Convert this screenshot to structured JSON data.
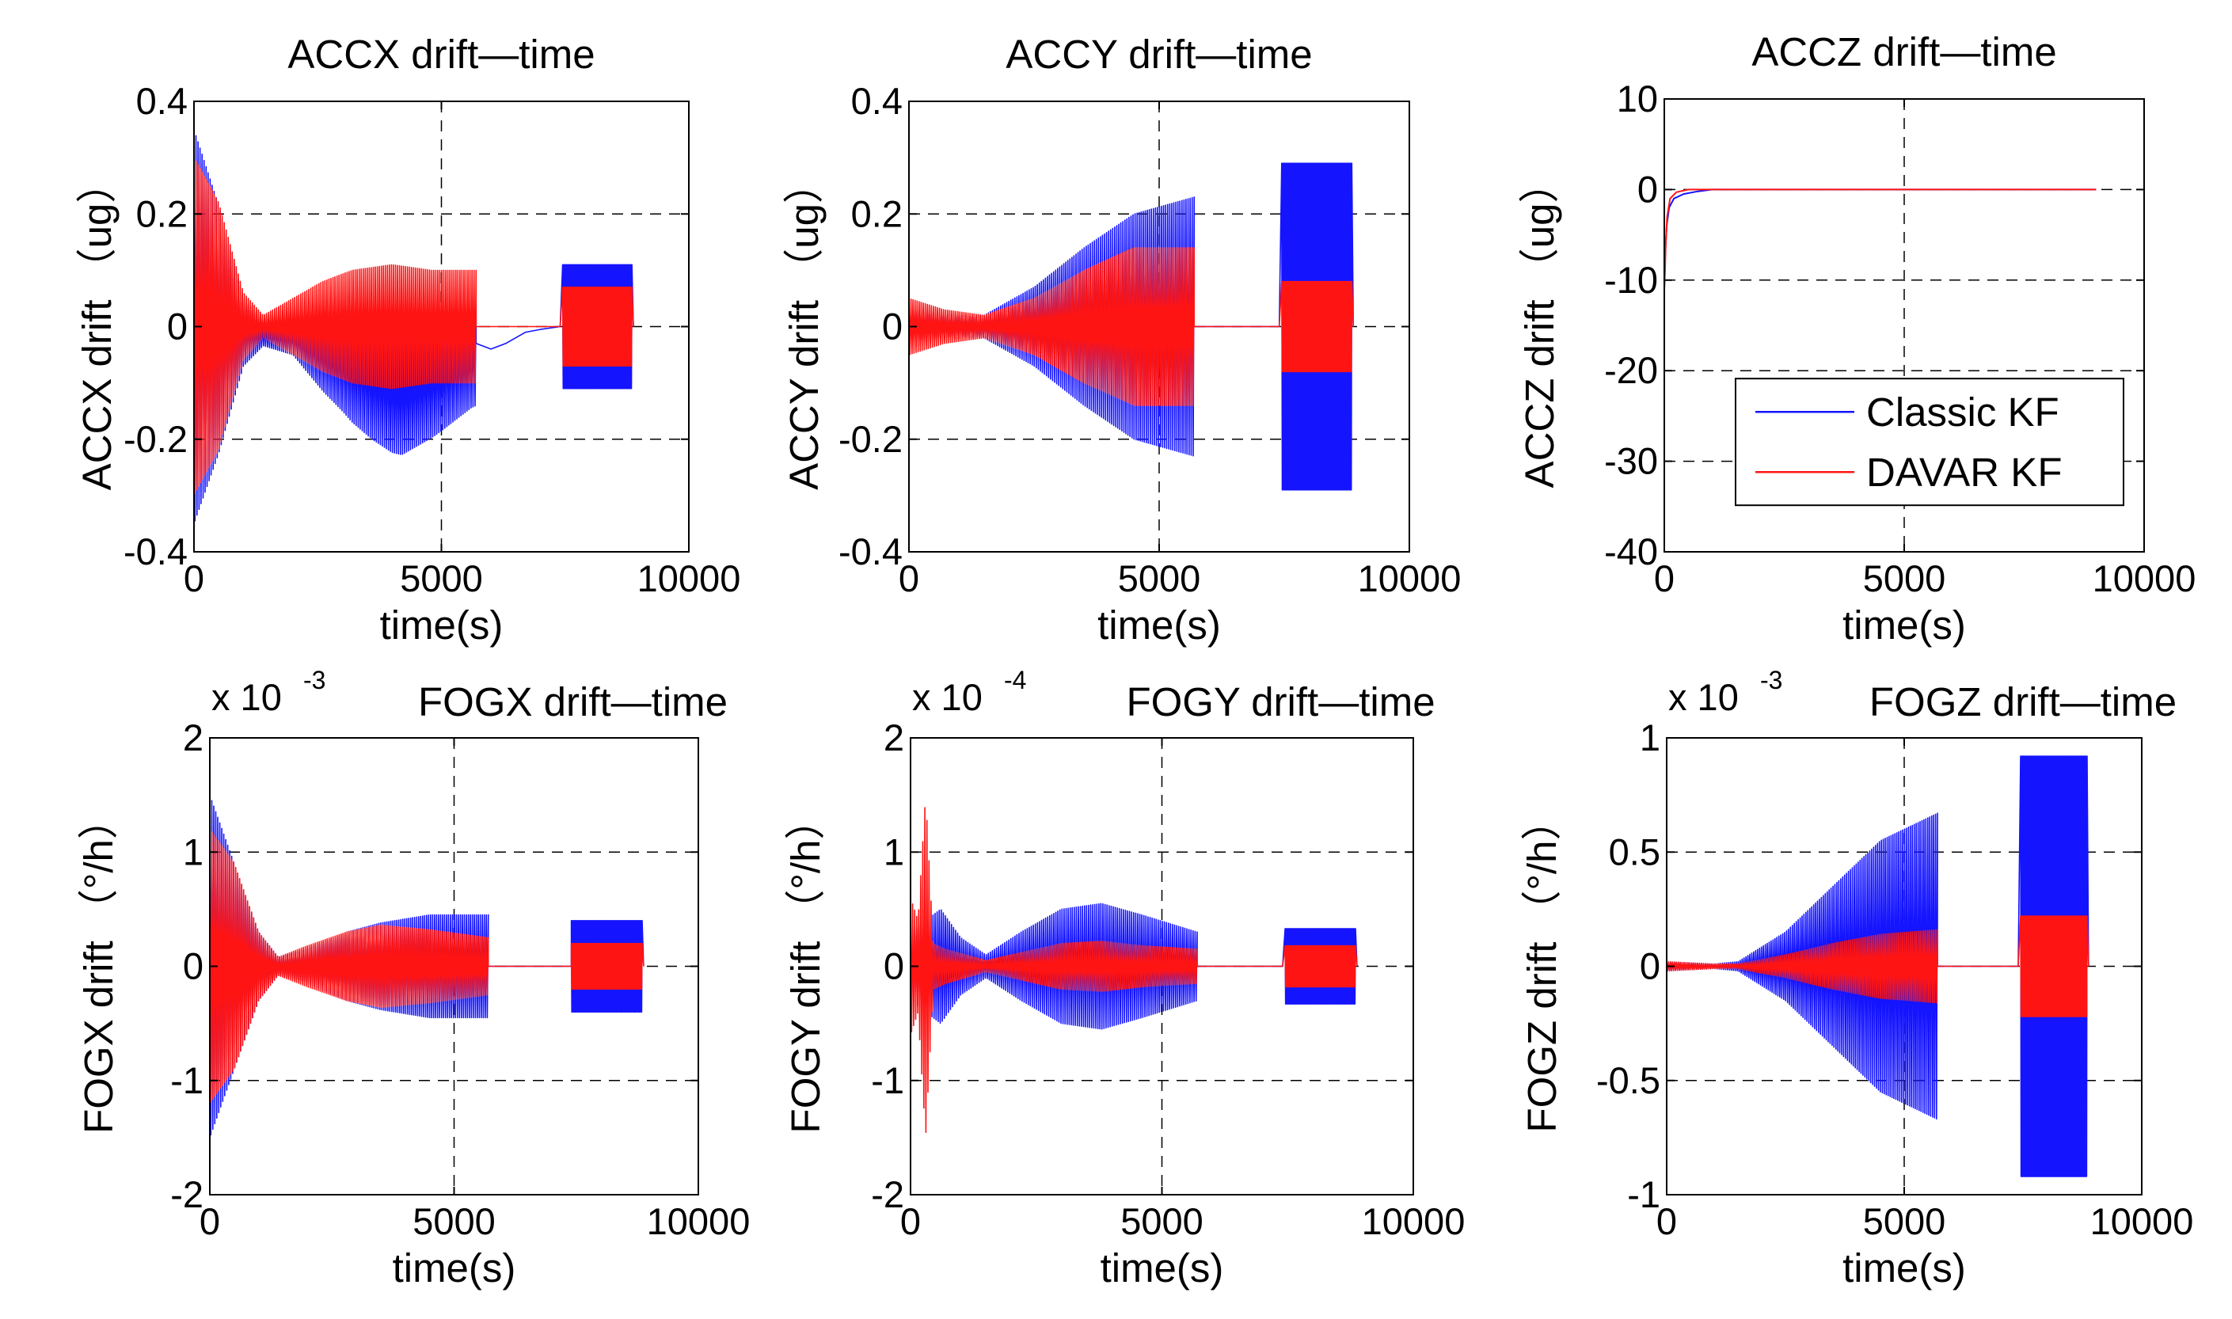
{
  "figure": {
    "series_names": [
      "Classic KF",
      "DAVAR KF"
    ],
    "series_colors": [
      "#1414ff",
      "#ff1414"
    ]
  },
  "chart_data": [
    {
      "type": "line",
      "title": "ACCX drift—time",
      "xlabel": "time(s)",
      "ylabel": "ACCX drift （ug）",
      "xlim": [
        0,
        10000
      ],
      "ylim": [
        -0.4,
        0.4
      ],
      "xticks": [
        0,
        5000,
        10000
      ],
      "yticks": [
        -0.4,
        -0.2,
        0,
        0.2,
        0.4
      ],
      "xtick_labels": [
        "0",
        "5000",
        "10000"
      ],
      "ytick_labels": [
        "-0.4",
        "-0.2",
        "0",
        "0.2",
        "0.4"
      ],
      "multiplier": null,
      "grid": true,
      "series": [
        {
          "name": "Classic KF",
          "color": "#1414ff",
          "envelope": [
            [
              0,
              0.35
            ],
            [
              500,
              0.22
            ],
            [
              1000,
              0.06
            ],
            [
              1400,
              0.02
            ],
            [
              2000,
              0.03
            ],
            [
              2600,
              0.07
            ],
            [
              3200,
              0.1
            ],
            [
              4000,
              0.12
            ],
            [
              4800,
              0.11
            ],
            [
              5600,
              0.09
            ]
          ],
          "offset": [
            [
              0,
              0
            ],
            [
              2000,
              -0.02
            ],
            [
              3000,
              -0.06
            ],
            [
              3600,
              -0.09
            ],
            [
              4200,
              -0.11
            ],
            [
              5000,
              -0.08
            ],
            [
              5700,
              -0.05
            ]
          ],
          "segments": [
            [
              0,
              5700
            ],
            [
              7450,
              8850
            ]
          ],
          "seg_envelope": [
            0.11
          ],
          "seg_offset": [
            0
          ],
          "trend": [
            [
              5700,
              -0.03
            ],
            [
              6000,
              -0.04
            ],
            [
              6300,
              -0.03
            ],
            [
              6700,
              -0.01
            ],
            [
              7000,
              -0.005
            ],
            [
              7400,
              0.0
            ]
          ],
          "cycles": 140
        },
        {
          "name": "DAVAR KF",
          "color": "#ff1414",
          "envelope": [
            [
              0,
              0.3
            ],
            [
              500,
              0.22
            ],
            [
              1000,
              0.06
            ],
            [
              1400,
              0.02
            ],
            [
              2000,
              0.05
            ],
            [
              2600,
              0.08
            ],
            [
              3200,
              0.1
            ],
            [
              4000,
              0.11
            ],
            [
              4800,
              0.1
            ],
            [
              5600,
              0.1
            ]
          ],
          "offset": [
            [
              0,
              0
            ],
            [
              2000,
              0.0
            ],
            [
              3000,
              0.0
            ],
            [
              5700,
              0.0
            ]
          ],
          "segments": [
            [
              0,
              5700
            ],
            [
              7450,
              8850
            ]
          ],
          "seg_envelope": [
            0.07
          ],
          "seg_offset": [
            0
          ],
          "trend": [
            [
              5700,
              0
            ],
            [
              7400,
              0
            ]
          ],
          "cycles": 140
        }
      ]
    },
    {
      "type": "line",
      "title": "ACCY drift—time",
      "xlabel": "time(s)",
      "ylabel": "ACCY drift （ug）",
      "xlim": [
        0,
        10000
      ],
      "ylim": [
        -0.4,
        0.4
      ],
      "xticks": [
        0,
        5000,
        10000
      ],
      "yticks": [
        -0.4,
        -0.2,
        0,
        0.2,
        0.4
      ],
      "xtick_labels": [
        "0",
        "5000",
        "10000"
      ],
      "ytick_labels": [
        "-0.4",
        "-0.2",
        "0",
        "0.2",
        "0.4"
      ],
      "multiplier": null,
      "grid": true,
      "series": [
        {
          "name": "Classic KF",
          "color": "#1414ff",
          "envelope": [
            [
              0,
              0.03
            ],
            [
              700,
              0.02
            ],
            [
              1500,
              0.02
            ],
            [
              2500,
              0.07
            ],
            [
              3500,
              0.14
            ],
            [
              4500,
              0.2
            ],
            [
              5700,
              0.23
            ]
          ],
          "offset": [
            [
              0,
              0
            ]
          ],
          "segments": [
            [
              0,
              5700
            ],
            [
              7450,
              8850
            ]
          ],
          "seg_envelope": [
            0.29
          ],
          "seg_offset": [
            0
          ],
          "trend": [
            [
              5700,
              0
            ],
            [
              7400,
              0
            ]
          ],
          "cycles": 140
        },
        {
          "name": "DAVAR KF",
          "color": "#ff1414",
          "envelope": [
            [
              0,
              0.05
            ],
            [
              700,
              0.03
            ],
            [
              1500,
              0.02
            ],
            [
              2500,
              0.05
            ],
            [
              3500,
              0.1
            ],
            [
              4500,
              0.14
            ],
            [
              5700,
              0.14
            ]
          ],
          "offset": [
            [
              0,
              0
            ]
          ],
          "segments": [
            [
              0,
              5700
            ],
            [
              7450,
              8850
            ]
          ],
          "seg_envelope": [
            0.08
          ],
          "seg_offset": [
            0
          ],
          "trend": [
            [
              5700,
              0
            ],
            [
              7400,
              0
            ]
          ],
          "cycles": 140
        }
      ]
    },
    {
      "type": "line",
      "title": "ACCZ drift—time",
      "xlabel": "time(s)",
      "ylabel": "ACCZ drift （ug）",
      "xlim": [
        0,
        10000
      ],
      "ylim": [
        -40,
        10
      ],
      "xticks": [
        0,
        5000,
        10000
      ],
      "yticks": [
        -40,
        -30,
        -20,
        -10,
        0,
        10
      ],
      "xtick_labels": [
        "0",
        "5000",
        "10000"
      ],
      "ytick_labels": [
        "-40",
        "-30",
        "-20",
        "-10",
        "0",
        "10"
      ],
      "multiplier": null,
      "grid": true,
      "legend": {
        "location": "center-right",
        "entries": [
          "Classic KF",
          "DAVAR KF"
        ]
      },
      "series": [
        {
          "name": "Classic KF",
          "color": "#1414ff",
          "curve": [
            [
              0,
              -11
            ],
            [
              20,
              -7
            ],
            [
              50,
              -4
            ],
            [
              100,
              -2
            ],
            [
              200,
              -1
            ],
            [
              400,
              -0.5
            ],
            [
              700,
              -0.2
            ],
            [
              1000,
              0
            ],
            [
              9000,
              0
            ]
          ]
        },
        {
          "name": "DAVAR KF",
          "color": "#ff1414",
          "curve": [
            [
              0,
              -11
            ],
            [
              15,
              -9
            ],
            [
              30,
              -6
            ],
            [
              60,
              -3
            ],
            [
              120,
              -1
            ],
            [
              250,
              -0.3
            ],
            [
              500,
              0
            ],
            [
              9000,
              0
            ]
          ]
        }
      ]
    },
    {
      "type": "line",
      "title": "FOGX drift—time",
      "xlabel": "time(s)",
      "ylabel": "FOGX drift （°/h）",
      "xlim": [
        0,
        10000
      ],
      "ylim": [
        -2,
        2
      ],
      "xticks": [
        0,
        5000,
        10000
      ],
      "yticks": [
        -2,
        -1,
        0,
        1,
        2
      ],
      "xtick_labels": [
        "0",
        "5000",
        "10000"
      ],
      "ytick_labels": [
        "-2",
        "-1",
        "0",
        "1",
        "2"
      ],
      "multiplier": {
        "base": "x 10",
        "exp": "-3"
      },
      "grid": true,
      "series": [
        {
          "name": "Classic KF",
          "color": "#1414ff",
          "envelope": [
            [
              0,
              1.5
            ],
            [
              500,
              0.9
            ],
            [
              1000,
              0.3
            ],
            [
              1400,
              0.08
            ],
            [
              2000,
              0.15
            ],
            [
              2800,
              0.3
            ],
            [
              3500,
              0.38
            ],
            [
              4500,
              0.45
            ],
            [
              5700,
              0.45
            ]
          ],
          "offset": [
            [
              0,
              0
            ]
          ],
          "segments": [
            [
              0,
              5700
            ],
            [
              7400,
              8850
            ]
          ],
          "seg_envelope": [
            0.4
          ],
          "seg_offset": [
            0
          ],
          "trend": [
            [
              5700,
              0
            ],
            [
              7400,
              0
            ]
          ],
          "cycles": 140
        },
        {
          "name": "DAVAR KF",
          "color": "#ff1414",
          "envelope": [
            [
              0,
              1.2
            ],
            [
              500,
              0.9
            ],
            [
              1000,
              0.3
            ],
            [
              1400,
              0.08
            ],
            [
              2000,
              0.18
            ],
            [
              2800,
              0.3
            ],
            [
              3500,
              0.36
            ],
            [
              4500,
              0.32
            ],
            [
              5700,
              0.25
            ]
          ],
          "offset": [
            [
              0,
              0
            ]
          ],
          "segments": [
            [
              0,
              5700
            ],
            [
              7400,
              8850
            ]
          ],
          "seg_envelope": [
            0.2
          ],
          "seg_offset": [
            0
          ],
          "trend": [
            [
              5700,
              0
            ],
            [
              7400,
              0
            ]
          ],
          "cycles": 140
        }
      ]
    },
    {
      "type": "line",
      "title": "FOGY drift—time",
      "xlabel": "time(s)",
      "ylabel": "FOGY drift （°/h）",
      "xlim": [
        0,
        10000
      ],
      "ylim": [
        -2,
        2
      ],
      "xticks": [
        0,
        5000,
        10000
      ],
      "yticks": [
        -2,
        -1,
        0,
        1,
        2
      ],
      "xtick_labels": [
        "0",
        "5000",
        "10000"
      ],
      "ytick_labels": [
        "-2",
        "-1",
        "0",
        "1",
        "2"
      ],
      "multiplier": {
        "base": "x 10",
        "exp": "-4"
      },
      "grid": true,
      "series": [
        {
          "name": "Classic KF",
          "color": "#1414ff",
          "envelope": [
            [
              0,
              0.3
            ],
            [
              600,
              0.5
            ],
            [
              1000,
              0.25
            ],
            [
              1500,
              0.1
            ],
            [
              2200,
              0.3
            ],
            [
              3000,
              0.5
            ],
            [
              3800,
              0.55
            ],
            [
              4600,
              0.45
            ],
            [
              5700,
              0.3
            ]
          ],
          "offset": [
            [
              0,
              0
            ]
          ],
          "segments": [
            [
              0,
              5700
            ],
            [
              7450,
              8850
            ]
          ],
          "seg_envelope": [
            0.33
          ],
          "seg_offset": [
            0
          ],
          "trend": [
            [
              5700,
              0
            ],
            [
              7400,
              0
            ]
          ],
          "cycles": 140
        },
        {
          "name": "DAVAR KF",
          "color": "#ff1414",
          "envelope": [
            [
              0,
              0.6
            ],
            [
              150,
              0.4
            ],
            [
              300,
              1.5
            ],
            [
              450,
              0.2
            ],
            [
              700,
              0.15
            ],
            [
              1500,
              0.05
            ],
            [
              2200,
              0.12
            ],
            [
              3000,
              0.2
            ],
            [
              3800,
              0.22
            ],
            [
              4600,
              0.18
            ],
            [
              5700,
              0.15
            ]
          ],
          "offset": [
            [
              0,
              0
            ]
          ],
          "segments": [
            [
              0,
              5700
            ],
            [
              7450,
              8850
            ]
          ],
          "seg_envelope": [
            0.18
          ],
          "seg_offset": [
            0
          ],
          "trend": [
            [
              5700,
              0
            ],
            [
              7400,
              0
            ]
          ],
          "cycles": 140
        }
      ]
    },
    {
      "type": "line",
      "title": "FOGZ drift—time",
      "xlabel": "time(s)",
      "ylabel": "FOGZ drift （°/h）",
      "xlim": [
        0,
        10000
      ],
      "ylim": [
        -1,
        1
      ],
      "xticks": [
        0,
        5000,
        10000
      ],
      "yticks": [
        -1,
        -0.5,
        0,
        0.5,
        1
      ],
      "xtick_labels": [
        "0",
        "5000",
        "10000"
      ],
      "ytick_labels": [
        "-1",
        "-0.5",
        "0",
        "0.5",
        "1"
      ],
      "multiplier": {
        "base": "x 10",
        "exp": "-3"
      },
      "grid": true,
      "series": [
        {
          "name": "Classic KF",
          "color": "#1414ff",
          "envelope": [
            [
              0,
              0.02
            ],
            [
              1000,
              0.01
            ],
            [
              1500,
              0.02
            ],
            [
              2500,
              0.15
            ],
            [
              3500,
              0.35
            ],
            [
              4500,
              0.55
            ],
            [
              5700,
              0.67
            ]
          ],
          "offset": [
            [
              0,
              0
            ]
          ],
          "segments": [
            [
              0,
              5700
            ],
            [
              7450,
              8850
            ]
          ],
          "seg_envelope": [
            0.92
          ],
          "seg_offset": [
            0
          ],
          "trend": [
            [
              5700,
              0
            ],
            [
              7400,
              0
            ]
          ],
          "cycles": 140
        },
        {
          "name": "DAVAR KF",
          "color": "#ff1414",
          "envelope": [
            [
              0,
              0.02
            ],
            [
              1000,
              0.01
            ],
            [
              1500,
              0.01
            ],
            [
              2500,
              0.05
            ],
            [
              3500,
              0.1
            ],
            [
              4500,
              0.14
            ],
            [
              5700,
              0.16
            ]
          ],
          "offset": [
            [
              0,
              0
            ]
          ],
          "segments": [
            [
              0,
              5700
            ],
            [
              7450,
              8850
            ]
          ],
          "seg_envelope": [
            0.22
          ],
          "seg_offset": [
            0
          ],
          "trend": [
            [
              5700,
              0
            ],
            [
              7400,
              0
            ]
          ],
          "cycles": 140
        }
      ]
    }
  ]
}
